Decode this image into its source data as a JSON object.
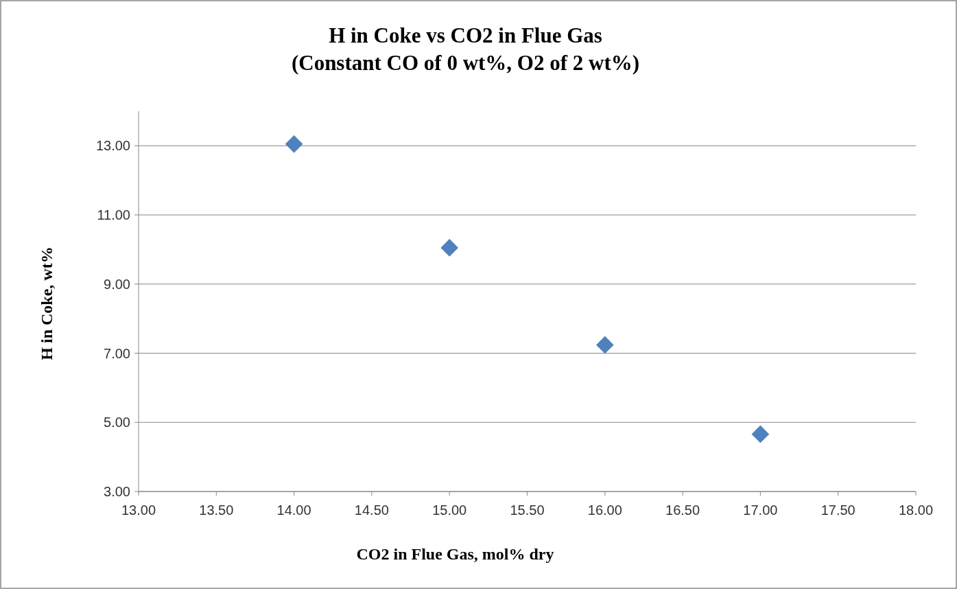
{
  "chart_data": {
    "type": "scatter",
    "title": "H in Coke vs CO2 in Flue Gas\n(Constant CO of 0 wt%, O2 of 2 wt%)",
    "xlabel": "CO2 in Flue Gas, mol% dry",
    "ylabel": "H in Coke, wt%",
    "x": [
      14,
      15,
      16,
      17
    ],
    "series": [
      {
        "color": "#4f81bd",
        "values": [
          13.05,
          10.05,
          7.24,
          4.66
        ]
      }
    ],
    "xlim": [
      13,
      18
    ],
    "xticks": [
      {
        "value": 13,
        "label": "13.00"
      },
      {
        "value": 13.5,
        "label": "13.50"
      },
      {
        "value": 14,
        "label": "14.00"
      },
      {
        "value": 14.5,
        "label": "14.50"
      },
      {
        "value": 15,
        "label": "15.00"
      },
      {
        "value": 15.5,
        "label": "15.50"
      },
      {
        "value": 16,
        "label": "16.00"
      },
      {
        "value": 16.5,
        "label": "16.50"
      },
      {
        "value": 17,
        "label": "17.00"
      },
      {
        "value": 17.5,
        "label": "17.50"
      },
      {
        "value": 18,
        "label": "18.00"
      }
    ],
    "ylim": [
      3,
      14
    ],
    "yticks": [
      {
        "value": 3,
        "label": "3.00"
      },
      {
        "value": 5,
        "label": "5.00"
      },
      {
        "value": 7,
        "label": "7.00"
      },
      {
        "value": 9,
        "label": "9.00"
      },
      {
        "value": 11,
        "label": "11.00"
      },
      {
        "value": 13,
        "label": "13.00"
      }
    ],
    "grid": "y",
    "marker": "diamond"
  }
}
